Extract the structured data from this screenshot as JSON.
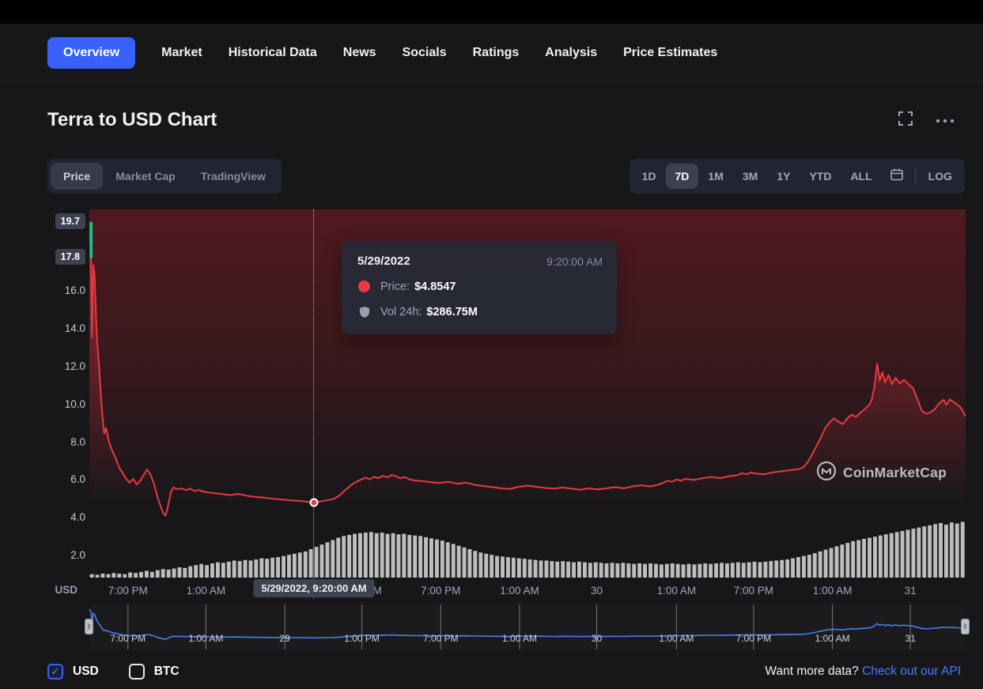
{
  "nav": {
    "tabs": [
      {
        "label": "Overview",
        "active": true
      },
      {
        "label": "Market"
      },
      {
        "label": "Historical Data"
      },
      {
        "label": "News"
      },
      {
        "label": "Socials"
      },
      {
        "label": "Ratings"
      },
      {
        "label": "Analysis"
      },
      {
        "label": "Price Estimates"
      }
    ]
  },
  "header": {
    "title": "Terra to USD Chart"
  },
  "chart_toolbar": {
    "view_options": [
      {
        "label": "Price",
        "active": true
      },
      {
        "label": "Market Cap"
      },
      {
        "label": "TradingView"
      }
    ],
    "ranges": [
      {
        "label": "1D"
      },
      {
        "label": "7D",
        "active": true
      },
      {
        "label": "1M"
      },
      {
        "label": "3M"
      },
      {
        "label": "1Y"
      },
      {
        "label": "YTD"
      },
      {
        "label": "ALL"
      }
    ],
    "log_label": "LOG"
  },
  "tooltip": {
    "date": "5/29/2022",
    "time": "9:20:00 AM",
    "rows": [
      {
        "icon": "price-dot",
        "label": "Price:",
        "value": "$4.8547"
      },
      {
        "icon": "volume-shield",
        "label": "Vol 24h:",
        "value": "$286.75M"
      }
    ]
  },
  "watermark": {
    "text": "CoinMarketCap"
  },
  "footer": {
    "currencies": [
      {
        "label": "USD",
        "checked": true
      },
      {
        "label": "BTC",
        "checked": false
      }
    ],
    "cta_text": "Want more data?",
    "cta_link": "Check out our API"
  },
  "icons": {
    "check": "✓",
    "drag_handle": "‖"
  },
  "colors": {
    "accent_blue": "#3861fb",
    "line_red": "#ea3943",
    "open_green": "#16c784",
    "panel": "#222531",
    "background": "#17171a"
  },
  "chart_data": {
    "type": "line",
    "title": "Terra to USD Chart",
    "unit": "USD",
    "ylim": [
      0.9,
      20.4
    ],
    "y_ticks": [
      {
        "value": 16,
        "label": "16.0"
      },
      {
        "value": 14,
        "label": "14.0"
      },
      {
        "value": 12,
        "label": "12.0"
      },
      {
        "value": 10,
        "label": "10.0"
      },
      {
        "value": 8,
        "label": "8.0"
      },
      {
        "value": 6,
        "label": "6.0"
      },
      {
        "value": 4,
        "label": "4.0"
      },
      {
        "value": 2,
        "label": "2.0"
      }
    ],
    "y_badges": [
      {
        "value": 19.7,
        "label": "19.7"
      },
      {
        "value": 17.8,
        "label": "17.8"
      }
    ],
    "x_ticks": [
      {
        "f": 0.044,
        "label": "7:00 PM"
      },
      {
        "f": 0.133,
        "label": "1:00 AM"
      },
      {
        "f": 0.223,
        "label": "29"
      },
      {
        "f": 0.311,
        "label": "1:00 PM"
      },
      {
        "f": 0.401,
        "label": "7:00 PM"
      },
      {
        "f": 0.491,
        "label": "1:00 AM"
      },
      {
        "f": 0.579,
        "label": "30"
      },
      {
        "f": 0.67,
        "label": "1:00 AM"
      },
      {
        "f": 0.758,
        "label": "7:00 PM"
      },
      {
        "f": 0.848,
        "label": "1:00 AM"
      },
      {
        "f": 0.937,
        "label": "31"
      }
    ],
    "crosshair": {
      "f": 0.2563,
      "price": 4.8547,
      "label": "5/29/2022, 9:20:00 AM"
    },
    "opening_bar": {
      "from": 17.8,
      "to": 19.7,
      "color": "#16c784"
    },
    "series": [
      {
        "name": "Price",
        "color": "#ea3943",
        "points": [
          [
            0,
            19.7
          ],
          [
            0.002,
            17.9
          ],
          [
            0.003,
            13.6
          ],
          [
            0.0045,
            17.4
          ],
          [
            0.006,
            16.9
          ],
          [
            0.008,
            14.2
          ],
          [
            0.009,
            13.3
          ],
          [
            0.011,
            12.1
          ],
          [
            0.013,
            10.6
          ],
          [
            0.015,
            9.4
          ],
          [
            0.017,
            8.5
          ],
          [
            0.019,
            8.8
          ],
          [
            0.022,
            8.1
          ],
          [
            0.026,
            7.6
          ],
          [
            0.03,
            7.2
          ],
          [
            0.034,
            6.7
          ],
          [
            0.038,
            6.4
          ],
          [
            0.042,
            6.1
          ],
          [
            0.046,
            5.9
          ],
          [
            0.05,
            6.1
          ],
          [
            0.054,
            5.8
          ],
          [
            0.058,
            6.0
          ],
          [
            0.062,
            6.3
          ],
          [
            0.066,
            6.6
          ],
          [
            0.07,
            6.3
          ],
          [
            0.074,
            5.8
          ],
          [
            0.078,
            5.1
          ],
          [
            0.081,
            4.7
          ],
          [
            0.084,
            4.3
          ],
          [
            0.087,
            4.15
          ],
          [
            0.09,
            4.7
          ],
          [
            0.093,
            5.4
          ],
          [
            0.096,
            5.65
          ],
          [
            0.1,
            5.55
          ],
          [
            0.105,
            5.6
          ],
          [
            0.11,
            5.5
          ],
          [
            0.115,
            5.58
          ],
          [
            0.12,
            5.45
          ],
          [
            0.125,
            5.52
          ],
          [
            0.13,
            5.42
          ],
          [
            0.14,
            5.36
          ],
          [
            0.15,
            5.3
          ],
          [
            0.16,
            5.24
          ],
          [
            0.17,
            5.3
          ],
          [
            0.18,
            5.2
          ],
          [
            0.19,
            5.14
          ],
          [
            0.2,
            5.1
          ],
          [
            0.21,
            5.04
          ],
          [
            0.22,
            5.0
          ],
          [
            0.23,
            4.96
          ],
          [
            0.24,
            4.93
          ],
          [
            0.25,
            4.88
          ],
          [
            0.2563,
            4.8547
          ],
          [
            0.263,
            4.9
          ],
          [
            0.27,
            4.96
          ],
          [
            0.278,
            5.02
          ],
          [
            0.285,
            5.2
          ],
          [
            0.292,
            5.5
          ],
          [
            0.3,
            5.82
          ],
          [
            0.308,
            6.02
          ],
          [
            0.315,
            6.16
          ],
          [
            0.32,
            6.08
          ],
          [
            0.325,
            6.2
          ],
          [
            0.33,
            6.14
          ],
          [
            0.335,
            6.26
          ],
          [
            0.34,
            6.18
          ],
          [
            0.345,
            6.3
          ],
          [
            0.35,
            6.24
          ],
          [
            0.355,
            6.12
          ],
          [
            0.36,
            6.2
          ],
          [
            0.365,
            6.08
          ],
          [
            0.37,
            6.02
          ],
          [
            0.38,
            5.98
          ],
          [
            0.39,
            5.92
          ],
          [
            0.4,
            5.88
          ],
          [
            0.41,
            5.94
          ],
          [
            0.42,
            5.84
          ],
          [
            0.43,
            5.9
          ],
          [
            0.44,
            5.78
          ],
          [
            0.45,
            5.72
          ],
          [
            0.46,
            5.66
          ],
          [
            0.47,
            5.6
          ],
          [
            0.48,
            5.56
          ],
          [
            0.49,
            5.68
          ],
          [
            0.5,
            5.74
          ],
          [
            0.51,
            5.68
          ],
          [
            0.52,
            5.62
          ],
          [
            0.53,
            5.58
          ],
          [
            0.54,
            5.64
          ],
          [
            0.55,
            5.58
          ],
          [
            0.56,
            5.52
          ],
          [
            0.57,
            5.6
          ],
          [
            0.58,
            5.54
          ],
          [
            0.59,
            5.6
          ],
          [
            0.6,
            5.66
          ],
          [
            0.61,
            5.6
          ],
          [
            0.62,
            5.7
          ],
          [
            0.63,
            5.76
          ],
          [
            0.64,
            5.7
          ],
          [
            0.65,
            5.8
          ],
          [
            0.655,
            5.9
          ],
          [
            0.66,
            6.0
          ],
          [
            0.665,
            5.94
          ],
          [
            0.67,
            6.06
          ],
          [
            0.675,
            6.0
          ],
          [
            0.68,
            6.1
          ],
          [
            0.69,
            6.04
          ],
          [
            0.7,
            6.14
          ],
          [
            0.71,
            6.2
          ],
          [
            0.72,
            6.14
          ],
          [
            0.73,
            6.24
          ],
          [
            0.74,
            6.3
          ],
          [
            0.745,
            6.4
          ],
          [
            0.75,
            6.34
          ],
          [
            0.755,
            6.44
          ],
          [
            0.76,
            6.38
          ],
          [
            0.77,
            6.34
          ],
          [
            0.78,
            6.44
          ],
          [
            0.79,
            6.5
          ],
          [
            0.8,
            6.56
          ],
          [
            0.81,
            6.62
          ],
          [
            0.815,
            6.72
          ],
          [
            0.82,
            7.0
          ],
          [
            0.825,
            7.4
          ],
          [
            0.83,
            7.85
          ],
          [
            0.835,
            8.3
          ],
          [
            0.84,
            8.8
          ],
          [
            0.845,
            9.1
          ],
          [
            0.85,
            9.3
          ],
          [
            0.855,
            9.12
          ],
          [
            0.86,
            9.0
          ],
          [
            0.865,
            9.3
          ],
          [
            0.87,
            9.5
          ],
          [
            0.875,
            9.38
          ],
          [
            0.88,
            9.6
          ],
          [
            0.885,
            9.8
          ],
          [
            0.89,
            10.0
          ],
          [
            0.893,
            10.3
          ],
          [
            0.896,
            11.0
          ],
          [
            0.899,
            12.2
          ],
          [
            0.902,
            11.3
          ],
          [
            0.905,
            11.75
          ],
          [
            0.908,
            11.2
          ],
          [
            0.912,
            11.6
          ],
          [
            0.916,
            11.1
          ],
          [
            0.92,
            11.45
          ],
          [
            0.925,
            11.15
          ],
          [
            0.93,
            11.35
          ],
          [
            0.935,
            11.1
          ],
          [
            0.94,
            10.9
          ],
          [
            0.945,
            10.3
          ],
          [
            0.95,
            9.7
          ],
          [
            0.955,
            9.55
          ],
          [
            0.96,
            9.62
          ],
          [
            0.965,
            9.8
          ],
          [
            0.97,
            10.1
          ],
          [
            0.975,
            10.28
          ],
          [
            0.978,
            10.02
          ],
          [
            0.982,
            10.3
          ],
          [
            0.986,
            10.18
          ],
          [
            0.99,
            10.04
          ],
          [
            0.994,
            9.9
          ],
          [
            1,
            9.42
          ]
        ]
      }
    ],
    "volume": {
      "color": "rgba(255,255,255,0.72)",
      "values": [
        0.06,
        0.05,
        0.07,
        0.06,
        0.08,
        0.07,
        0.06,
        0.09,
        0.08,
        0.1,
        0.12,
        0.1,
        0.13,
        0.15,
        0.14,
        0.16,
        0.18,
        0.17,
        0.2,
        0.22,
        0.24,
        0.22,
        0.25,
        0.27,
        0.26,
        0.28,
        0.3,
        0.29,
        0.31,
        0.3,
        0.32,
        0.34,
        0.33,
        0.35,
        0.36,
        0.38,
        0.4,
        0.42,
        0.44,
        0.46,
        0.5,
        0.54,
        0.58,
        0.62,
        0.66,
        0.7,
        0.73,
        0.75,
        0.77,
        0.78,
        0.79,
        0.8,
        0.78,
        0.79,
        0.77,
        0.78,
        0.76,
        0.77,
        0.75,
        0.74,
        0.73,
        0.71,
        0.69,
        0.67,
        0.65,
        0.62,
        0.59,
        0.56,
        0.53,
        0.5,
        0.47,
        0.44,
        0.42,
        0.4,
        0.38,
        0.37,
        0.36,
        0.35,
        0.34,
        0.33,
        0.32,
        0.31,
        0.3,
        0.3,
        0.29,
        0.28,
        0.29,
        0.28,
        0.27,
        0.28,
        0.27,
        0.26,
        0.27,
        0.26,
        0.25,
        0.26,
        0.25,
        0.26,
        0.25,
        0.24,
        0.25,
        0.24,
        0.25,
        0.24,
        0.23,
        0.24,
        0.25,
        0.24,
        0.23,
        0.24,
        0.23,
        0.24,
        0.25,
        0.24,
        0.25,
        0.26,
        0.25,
        0.26,
        0.27,
        0.26,
        0.27,
        0.28,
        0.27,
        0.28,
        0.29,
        0.3,
        0.31,
        0.32,
        0.34,
        0.36,
        0.38,
        0.4,
        0.43,
        0.46,
        0.49,
        0.52,
        0.55,
        0.58,
        0.61,
        0.64,
        0.66,
        0.68,
        0.7,
        0.72,
        0.74,
        0.76,
        0.78,
        0.8,
        0.82,
        0.84,
        0.86,
        0.88,
        0.9,
        0.92,
        0.94,
        0.96,
        0.93,
        0.97,
        0.95,
        0.98
      ]
    },
    "navigator": {
      "line_color": "#4a7df5"
    }
  }
}
